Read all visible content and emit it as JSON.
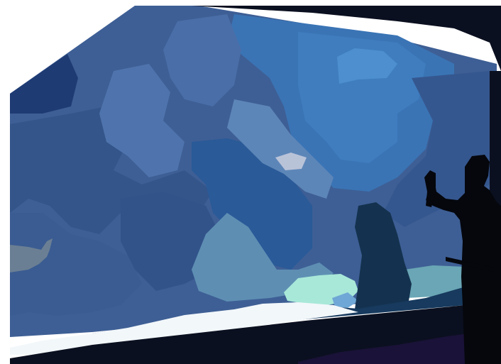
{
  "scene": {
    "kind": "aquarium viewing window with silhouetted visitor",
    "colors": {
      "background": "#ffffff",
      "frame_dark": "#0b1020",
      "water_base": "#3e5f95",
      "water_deep": "#1f3b73",
      "water_bright": "#3f7dbf",
      "water_mid": "#4a6ea8",
      "water_light": "#5d86b8",
      "sand": "#f2f7fa",
      "shelf": "#173a5e",
      "coral_teal": "#6aa6b5",
      "coral_mint": "#a8e8d8",
      "fish_gray": "#6b7f94",
      "silhouette": "#05070d",
      "floor_purple": "#1a1238"
    }
  }
}
